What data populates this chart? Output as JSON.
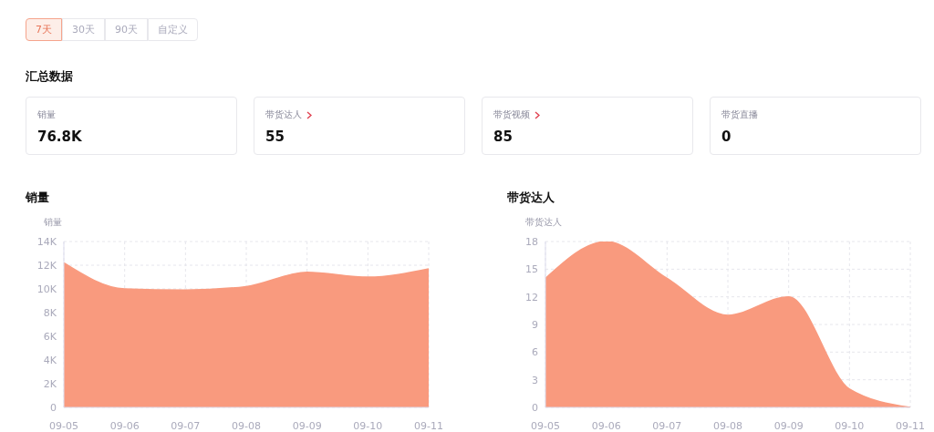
{
  "chart_data": [
    {
      "type": "other",
      "title": "汇总数据",
      "annotations": [
        "7天",
        "30天",
        "90天",
        "自定义",
        "销量",
        "76.8K",
        "带货达人",
        "55",
        "带货视频",
        "85",
        "带货直播",
        "0"
      ]
    },
    {
      "type": "area",
      "title": "销量",
      "ylabel": "销量",
      "categories": [
        "09-05",
        "09-06",
        "09-07",
        "09-08",
        "09-09",
        "09-10",
        "09-11"
      ],
      "series": [
        {
          "color": "#f99a7e",
          "values": [
            12200,
            10000,
            9900,
            10200,
            11400,
            11000,
            11700
          ]
        }
      ],
      "ylim": [
        0,
        14000
      ],
      "yticks": [
        0,
        {
          "value": 2000,
          "label": "2K"
        },
        {
          "value": 4000,
          "label": "4K"
        },
        {
          "value": 6000,
          "label": "6K"
        },
        {
          "value": 8000,
          "label": "8K"
        },
        {
          "value": 10000,
          "label": "10K"
        },
        {
          "value": 12000,
          "label": "12K"
        },
        {
          "value": 14000,
          "label": "14K"
        }
      ],
      "grid": true,
      "legend": false
    },
    {
      "type": "area",
      "title": "带货达人",
      "ylabel": "带货达人",
      "categories": [
        "09-05",
        "09-06",
        "09-07",
        "09-08",
        "09-09",
        "09-10",
        "09-11"
      ],
      "series": [
        {
          "color": "#f99a7e",
          "values": [
            14,
            18,
            14,
            10,
            12,
            2,
            0
          ]
        }
      ],
      "ylim": [
        0,
        18
      ],
      "yticks": [
        0,
        3,
        6,
        9,
        12,
        15,
        18
      ],
      "grid": true,
      "legend": false
    }
  ]
}
